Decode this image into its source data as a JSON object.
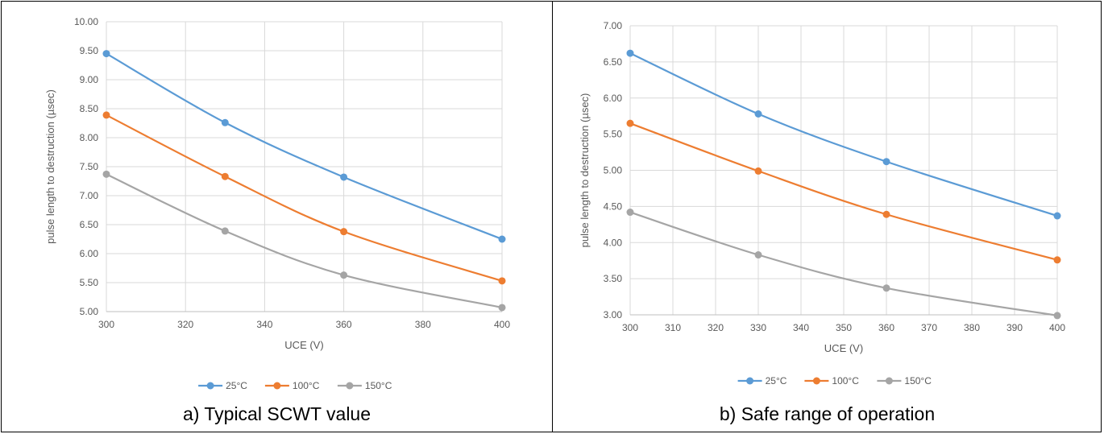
{
  "chart_data": [
    {
      "type": "line",
      "title": "",
      "xlabel": "UCE (V)",
      "ylabel": "pulse length to destruction (µsec)",
      "x": [
        300,
        330,
        360,
        400
      ],
      "xlim": [
        300,
        400
      ],
      "xticks": [
        "300",
        "320",
        "340",
        "360",
        "380",
        "400"
      ],
      "ylim": [
        5.0,
        10.0
      ],
      "yticks": [
        "5.00",
        "5.50",
        "6.00",
        "6.50",
        "7.00",
        "7.50",
        "8.00",
        "8.50",
        "9.00",
        "9.50",
        "10.00"
      ],
      "grid": true,
      "legend_position": "bottom",
      "series": [
        {
          "name": "25°C",
          "color": "#5b9bd5",
          "values": [
            9.45,
            8.26,
            7.32,
            6.25
          ]
        },
        {
          "name": "100°C",
          "color": "#ed7d31",
          "values": [
            8.39,
            7.33,
            6.38,
            5.53
          ]
        },
        {
          "name": "150°C",
          "color": "#a5a5a5",
          "values": [
            7.37,
            6.39,
            5.63,
            5.07
          ]
        }
      ],
      "caption": "a) Typical SCWT value"
    },
    {
      "type": "line",
      "title": "",
      "xlabel": "UCE (V)",
      "ylabel": "pulse length to destruction (µsec)",
      "x": [
        300,
        330,
        360,
        400
      ],
      "xlim": [
        300,
        400
      ],
      "xticks": [
        "300",
        "310",
        "320",
        "330",
        "340",
        "350",
        "360",
        "370",
        "380",
        "390",
        "400"
      ],
      "ylim": [
        3.0,
        7.0
      ],
      "yticks": [
        "3.00",
        "3.50",
        "4.00",
        "4.50",
        "5.00",
        "5.50",
        "6.00",
        "6.50",
        "7.00"
      ],
      "grid": true,
      "legend_position": "bottom",
      "series": [
        {
          "name": "25°C",
          "color": "#5b9bd5",
          "values": [
            6.62,
            5.78,
            5.12,
            4.37
          ]
        },
        {
          "name": "100°C",
          "color": "#ed7d31",
          "values": [
            5.65,
            4.99,
            4.39,
            3.76
          ]
        },
        {
          "name": "150°C",
          "color": "#a5a5a5",
          "values": [
            4.42,
            3.83,
            3.37,
            2.99
          ]
        }
      ],
      "caption": "b) Safe range of operation"
    }
  ]
}
